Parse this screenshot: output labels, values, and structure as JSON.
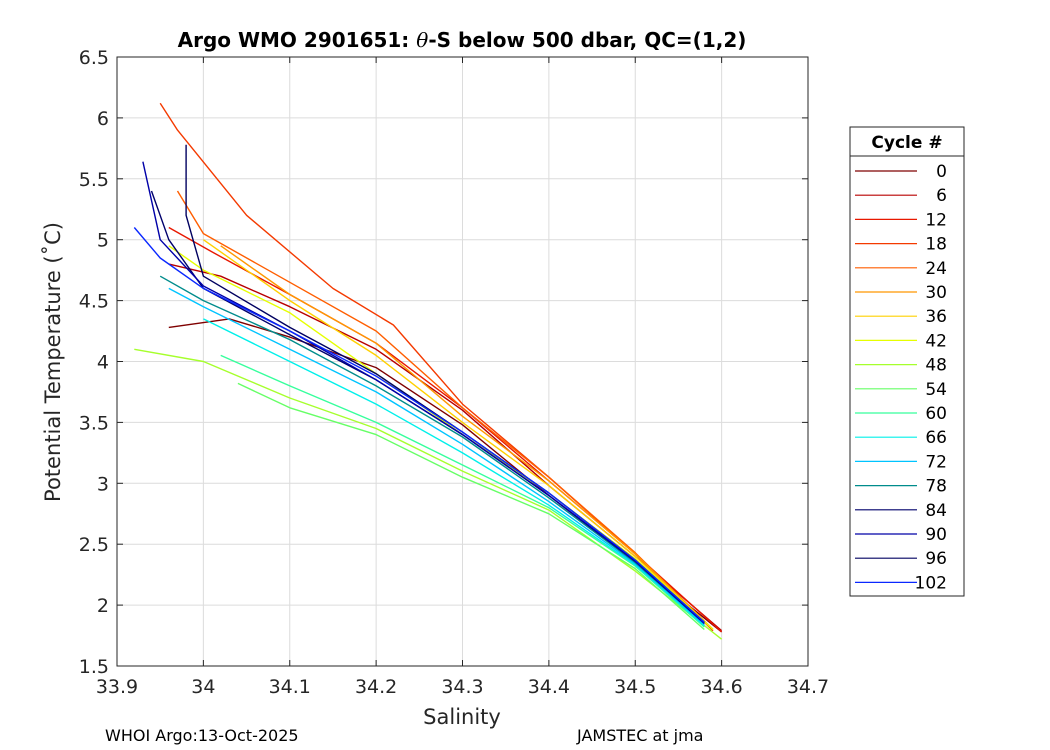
{
  "chart_data": {
    "type": "line",
    "title_prefix": "Argo WMO 2901651: ",
    "title_theta": "θ",
    "title_suffix": "-S below 500 dbar,  QC=(1,2)",
    "xlabel": "Salinity",
    "ylabel": "Potential Temperature (˚C)",
    "xlim": [
      33.9,
      34.7
    ],
    "ylim": [
      1.5,
      6.5
    ],
    "xticks": [
      "33.9",
      "34",
      "34.1",
      "34.2",
      "34.3",
      "34.4",
      "34.5",
      "34.6",
      "34.7"
    ],
    "yticks": [
      "1.5",
      "2",
      "2.5",
      "3",
      "3.5",
      "4",
      "4.5",
      "5",
      "5.5",
      "6",
      "6.5"
    ],
    "grid": true,
    "legend": {
      "title": "Cycle #",
      "position": "outside-right",
      "entries": [
        {
          "label": "0",
          "color": "#7f0000"
        },
        {
          "label": "6",
          "color": "#b80000"
        },
        {
          "label": "12",
          "color": "#e81800"
        },
        {
          "label": "18",
          "color": "#f43a00"
        },
        {
          "label": "24",
          "color": "#ff5e00"
        },
        {
          "label": "30",
          "color": "#ff9800"
        },
        {
          "label": "36",
          "color": "#ffd000"
        },
        {
          "label": "42",
          "color": "#e6ff00"
        },
        {
          "label": "48",
          "color": "#a6ff2c"
        },
        {
          "label": "54",
          "color": "#66ff66"
        },
        {
          "label": "60",
          "color": "#36ff9c"
        },
        {
          "label": "66",
          "color": "#00f0ea"
        },
        {
          "label": "72",
          "color": "#00c4ff"
        },
        {
          "label": "78",
          "color": "#008c8c"
        },
        {
          "label": "84",
          "color": "#00006c"
        },
        {
          "label": "90",
          "color": "#0000a8"
        },
        {
          "label": "96",
          "color": "#000060"
        },
        {
          "label": "102",
          "color": "#0a28ff"
        }
      ]
    },
    "series": [
      {
        "name": "0",
        "color": "#7f0000",
        "points": [
          [
            34.6,
            1.78
          ],
          [
            34.5,
            2.35
          ],
          [
            34.4,
            2.9
          ],
          [
            34.3,
            3.48
          ],
          [
            34.2,
            3.95
          ],
          [
            34.1,
            4.2
          ],
          [
            34.03,
            4.35
          ],
          [
            33.96,
            4.28
          ]
        ]
      },
      {
        "name": "6",
        "color": "#b80000",
        "points": [
          [
            34.6,
            1.79
          ],
          [
            34.5,
            2.4
          ],
          [
            34.4,
            2.98
          ],
          [
            34.3,
            3.6
          ],
          [
            34.2,
            4.1
          ],
          [
            34.1,
            4.45
          ],
          [
            34.02,
            4.7
          ],
          [
            33.96,
            4.8
          ]
        ]
      },
      {
        "name": "12",
        "color": "#e81800",
        "points": [
          [
            34.6,
            1.78
          ],
          [
            34.5,
            2.42
          ],
          [
            34.4,
            3.02
          ],
          [
            34.3,
            3.62
          ],
          [
            34.2,
            4.15
          ],
          [
            34.1,
            4.55
          ],
          [
            34.01,
            4.9
          ],
          [
            33.96,
            5.1
          ]
        ]
      },
      {
        "name": "18",
        "color": "#f43a00",
        "points": [
          [
            34.59,
            1.79
          ],
          [
            34.5,
            2.42
          ],
          [
            34.4,
            3.05
          ],
          [
            34.3,
            3.65
          ],
          [
            34.22,
            4.3
          ],
          [
            34.15,
            4.6
          ],
          [
            34.05,
            5.2
          ],
          [
            33.97,
            5.9
          ],
          [
            33.95,
            6.12
          ]
        ]
      },
      {
        "name": "24",
        "color": "#ff5e00",
        "points": [
          [
            34.59,
            1.8
          ],
          [
            34.5,
            2.43
          ],
          [
            34.4,
            3.05
          ],
          [
            34.3,
            3.62
          ],
          [
            34.2,
            4.25
          ],
          [
            34.1,
            4.65
          ],
          [
            34.0,
            5.05
          ],
          [
            33.97,
            5.4
          ]
        ]
      },
      {
        "name": "30",
        "color": "#ff9800",
        "points": [
          [
            34.59,
            1.8
          ],
          [
            34.5,
            2.42
          ],
          [
            34.4,
            3.02
          ],
          [
            34.3,
            3.55
          ],
          [
            34.2,
            4.15
          ],
          [
            34.1,
            4.55
          ],
          [
            34.02,
            4.95
          ]
        ]
      },
      {
        "name": "36",
        "color": "#ffd000",
        "points": [
          [
            34.59,
            1.8
          ],
          [
            34.5,
            2.4
          ],
          [
            34.4,
            2.98
          ],
          [
            34.3,
            3.5
          ],
          [
            34.2,
            4.05
          ],
          [
            34.1,
            4.5
          ],
          [
            34.0,
            5.0
          ]
        ]
      },
      {
        "name": "42",
        "color": "#e6ff00",
        "points": [
          [
            34.59,
            1.8
          ],
          [
            34.5,
            2.38
          ],
          [
            34.4,
            2.92
          ],
          [
            34.3,
            3.4
          ],
          [
            34.2,
            3.9
          ],
          [
            34.1,
            4.4
          ],
          [
            34.0,
            4.75
          ],
          [
            33.96,
            4.95
          ]
        ]
      },
      {
        "name": "48",
        "color": "#a6ff2c",
        "points": [
          [
            34.6,
            1.72
          ],
          [
            34.5,
            2.28
          ],
          [
            34.4,
            2.78
          ],
          [
            34.3,
            3.1
          ],
          [
            34.2,
            3.45
          ],
          [
            34.1,
            3.7
          ],
          [
            34.0,
            4.0
          ],
          [
            33.92,
            4.1
          ]
        ]
      },
      {
        "name": "54",
        "color": "#66ff66",
        "points": [
          [
            34.58,
            1.8
          ],
          [
            34.5,
            2.3
          ],
          [
            34.4,
            2.75
          ],
          [
            34.3,
            3.05
          ],
          [
            34.2,
            3.4
          ],
          [
            34.1,
            3.62
          ],
          [
            34.04,
            3.82
          ]
        ]
      },
      {
        "name": "60",
        "color": "#36ff9c",
        "points": [
          [
            34.58,
            1.82
          ],
          [
            34.5,
            2.32
          ],
          [
            34.4,
            2.8
          ],
          [
            34.3,
            3.15
          ],
          [
            34.2,
            3.5
          ],
          [
            34.1,
            3.8
          ],
          [
            34.02,
            4.05
          ]
        ]
      },
      {
        "name": "66",
        "color": "#00f0ea",
        "points": [
          [
            34.58,
            1.83
          ],
          [
            34.5,
            2.33
          ],
          [
            34.4,
            2.82
          ],
          [
            34.3,
            3.25
          ],
          [
            34.2,
            3.65
          ],
          [
            34.1,
            4.0
          ],
          [
            34.0,
            4.35
          ]
        ]
      },
      {
        "name": "72",
        "color": "#00c4ff",
        "points": [
          [
            34.58,
            1.84
          ],
          [
            34.5,
            2.34
          ],
          [
            34.4,
            2.85
          ],
          [
            34.3,
            3.32
          ],
          [
            34.2,
            3.75
          ],
          [
            34.1,
            4.1
          ],
          [
            34.0,
            4.45
          ],
          [
            33.96,
            4.6
          ]
        ]
      },
      {
        "name": "78",
        "color": "#008c8c",
        "points": [
          [
            34.58,
            1.85
          ],
          [
            34.5,
            2.35
          ],
          [
            34.4,
            2.88
          ],
          [
            34.3,
            3.38
          ],
          [
            34.2,
            3.8
          ],
          [
            34.1,
            4.18
          ],
          [
            34.0,
            4.5
          ],
          [
            33.95,
            4.7
          ]
        ]
      },
      {
        "name": "84",
        "color": "#00006c",
        "points": [
          [
            34.58,
            1.85
          ],
          [
            34.5,
            2.36
          ],
          [
            34.4,
            2.9
          ],
          [
            34.3,
            3.4
          ],
          [
            34.2,
            3.85
          ],
          [
            34.1,
            4.22
          ],
          [
            34.0,
            4.6
          ],
          [
            33.96,
            5.0
          ],
          [
            33.94,
            5.4
          ]
        ]
      },
      {
        "name": "90",
        "color": "#0000a8",
        "points": [
          [
            34.58,
            1.85
          ],
          [
            34.5,
            2.36
          ],
          [
            34.4,
            2.9
          ],
          [
            34.3,
            3.4
          ],
          [
            34.2,
            3.85
          ],
          [
            34.1,
            4.25
          ],
          [
            34.0,
            4.62
          ],
          [
            33.95,
            5.0
          ],
          [
            33.93,
            5.64
          ]
        ]
      },
      {
        "name": "96",
        "color": "#000060",
        "points": [
          [
            34.58,
            1.86
          ],
          [
            34.5,
            2.37
          ],
          [
            34.4,
            2.92
          ],
          [
            34.3,
            3.42
          ],
          [
            34.2,
            3.9
          ],
          [
            34.1,
            4.28
          ],
          [
            34.0,
            4.7
          ],
          [
            33.98,
            5.2
          ],
          [
            33.98,
            5.78
          ]
        ]
      },
      {
        "name": "102",
        "color": "#0a28ff",
        "points": [
          [
            34.58,
            1.86
          ],
          [
            34.5,
            2.37
          ],
          [
            34.4,
            2.92
          ],
          [
            34.3,
            3.42
          ],
          [
            34.2,
            3.88
          ],
          [
            34.1,
            4.25
          ],
          [
            34.0,
            4.6
          ],
          [
            33.95,
            4.85
          ],
          [
            33.92,
            5.1
          ]
        ]
      }
    ]
  },
  "footer": {
    "left": "WHOI Argo:13-Oct-2025",
    "right": "JAMSTEC at jma"
  }
}
